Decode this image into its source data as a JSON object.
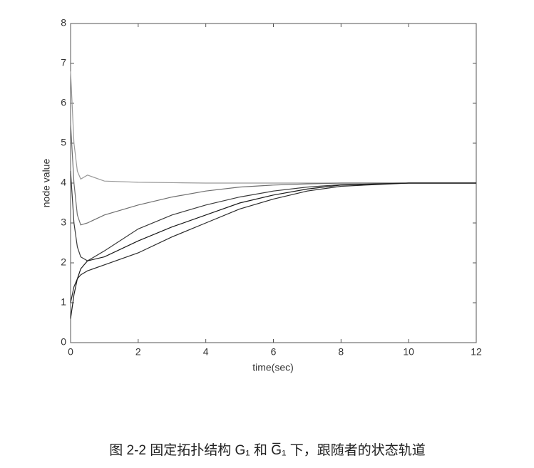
{
  "chart_data": {
    "type": "line",
    "xlabel": "time(sec)",
    "ylabel": "node value",
    "x": [
      0,
      0.1,
      0.2,
      0.3,
      0.5,
      1,
      2,
      3,
      4,
      5,
      6,
      7,
      8,
      10,
      12
    ],
    "series": [
      {
        "color": "#9a9a9a",
        "values": [
          6.8,
          5.0,
          4.3,
          4.1,
          4.2,
          4.05,
          4.02,
          4.01,
          4.0,
          4.0,
          4.0,
          4.0,
          4.0,
          4.0,
          4.0
        ]
      },
      {
        "color": "#6e6e6e",
        "values": [
          5.5,
          4.0,
          3.2,
          2.95,
          3.0,
          3.2,
          3.45,
          3.65,
          3.8,
          3.9,
          3.95,
          3.98,
          4.0,
          4.0,
          4.0
        ]
      },
      {
        "color": "#3a3a3a",
        "values": [
          4.3,
          3.0,
          2.4,
          2.15,
          2.05,
          2.3,
          2.85,
          3.2,
          3.45,
          3.65,
          3.8,
          3.9,
          3.96,
          4.0,
          4.0
        ]
      },
      {
        "color": "#2a2a2a",
        "values": [
          1.0,
          1.4,
          1.6,
          1.7,
          1.8,
          1.95,
          2.25,
          2.65,
          3.0,
          3.35,
          3.6,
          3.8,
          3.92,
          4.0,
          4.0
        ]
      },
      {
        "color": "#1a1a1a",
        "values": [
          0.6,
          1.2,
          1.6,
          1.85,
          2.05,
          2.15,
          2.55,
          2.9,
          3.2,
          3.5,
          3.7,
          3.85,
          3.95,
          4.0,
          4.0
        ]
      }
    ],
    "xlim": [
      0,
      12
    ],
    "xticks": [
      0,
      2,
      4,
      6,
      8,
      10,
      12
    ],
    "ylim": [
      0,
      8
    ],
    "yticks": [
      0,
      1,
      2,
      3,
      4,
      5,
      6,
      7,
      8
    ],
    "grid": false
  },
  "caption": "图 2-2 固定拓扑结构 G₁ 和 G̅₁ 下，跟随者的状态轨道"
}
